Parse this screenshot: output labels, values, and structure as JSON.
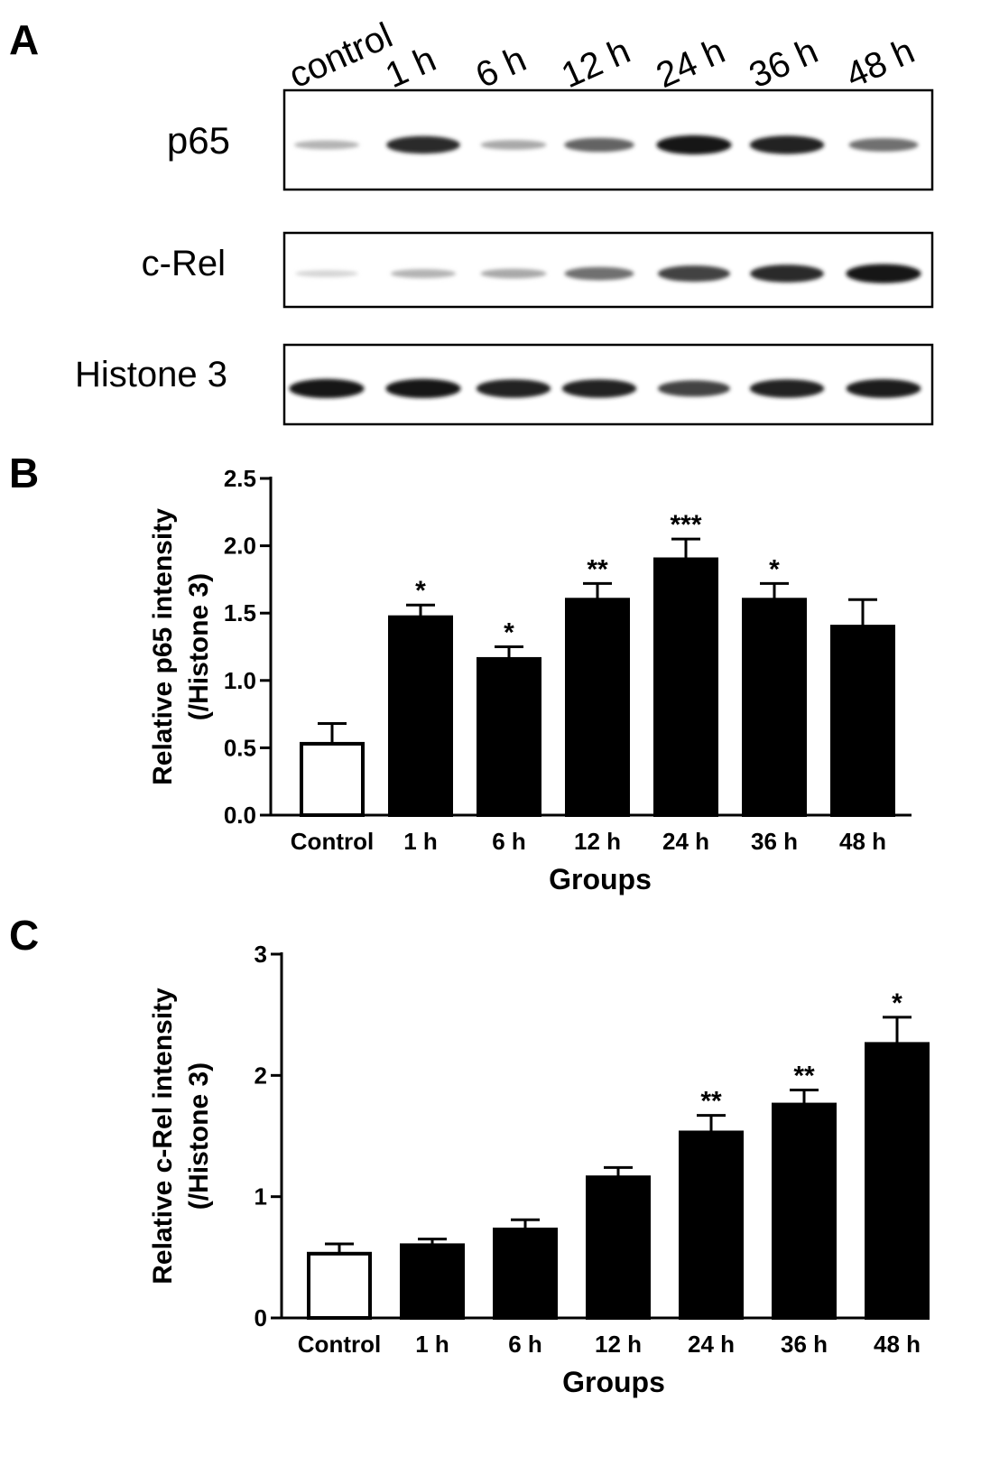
{
  "panels": {
    "a": {
      "letter": "A"
    },
    "b": {
      "letter": "B"
    },
    "c": {
      "letter": "C"
    }
  },
  "blot": {
    "lanes": [
      "control",
      "1 h",
      "6 h",
      "12 h",
      "24 h",
      "36 h",
      "48 h"
    ],
    "rows": [
      {
        "label": "p65",
        "band_intensity": [
          0.25,
          0.85,
          0.3,
          0.6,
          0.95,
          0.9,
          0.55
        ]
      },
      {
        "label": "c-Rel",
        "band_intensity": [
          0.1,
          0.25,
          0.3,
          0.55,
          0.75,
          0.85,
          0.95
        ]
      },
      {
        "label": "Histone 3",
        "band_intensity": [
          0.95,
          0.95,
          0.9,
          0.9,
          0.75,
          0.9,
          0.92
        ]
      }
    ]
  },
  "chart_data": [
    {
      "id": "b",
      "type": "bar",
      "categories": [
        "Control",
        "1 h",
        "6 h",
        "12 h",
        "24 h",
        "36 h",
        "48 h"
      ],
      "values": [
        0.53,
        1.47,
        1.16,
        1.6,
        1.9,
        1.6,
        1.4
      ],
      "errors": [
        0.15,
        0.09,
        0.09,
        0.12,
        0.15,
        0.12,
        0.2
      ],
      "significance": [
        "",
        "*",
        "*",
        "**",
        "***",
        "*",
        ""
      ],
      "bar_colors": [
        "#ffffff",
        "#000000",
        "#000000",
        "#000000",
        "#000000",
        "#000000",
        "#000000"
      ],
      "xlabel": "Groups",
      "ylabel": [
        "Relative p65 intensity",
        "(/Histone 3)"
      ],
      "ylim": [
        0,
        2.5
      ],
      "yticks": [
        0.0,
        0.5,
        1.0,
        1.5,
        2.0,
        2.5
      ],
      "ytick_labels": [
        "0.0",
        "0.5",
        "1.0",
        "1.5",
        "2.0",
        "2.5"
      ],
      "grid": false,
      "legend": "none"
    },
    {
      "id": "c",
      "type": "bar",
      "categories": [
        "Control",
        "1 h",
        "6 h",
        "12 h",
        "24 h",
        "36 h",
        "48 h"
      ],
      "values": [
        0.53,
        0.6,
        0.73,
        1.16,
        1.53,
        1.76,
        2.26
      ],
      "errors": [
        0.08,
        0.05,
        0.08,
        0.08,
        0.14,
        0.12,
        0.22
      ],
      "significance": [
        "",
        "",
        "",
        "",
        "**",
        "**",
        "*"
      ],
      "bar_colors": [
        "#ffffff",
        "#000000",
        "#000000",
        "#000000",
        "#000000",
        "#000000",
        "#000000"
      ],
      "xlabel": "Groups",
      "ylabel": [
        "Relative c-Rel intensity",
        "(/Histone 3)"
      ],
      "ylim": [
        0,
        3
      ],
      "yticks": [
        0,
        1,
        2,
        3
      ],
      "ytick_labels": [
        "0",
        "1",
        "2",
        "3"
      ],
      "grid": false,
      "legend": "none"
    }
  ]
}
